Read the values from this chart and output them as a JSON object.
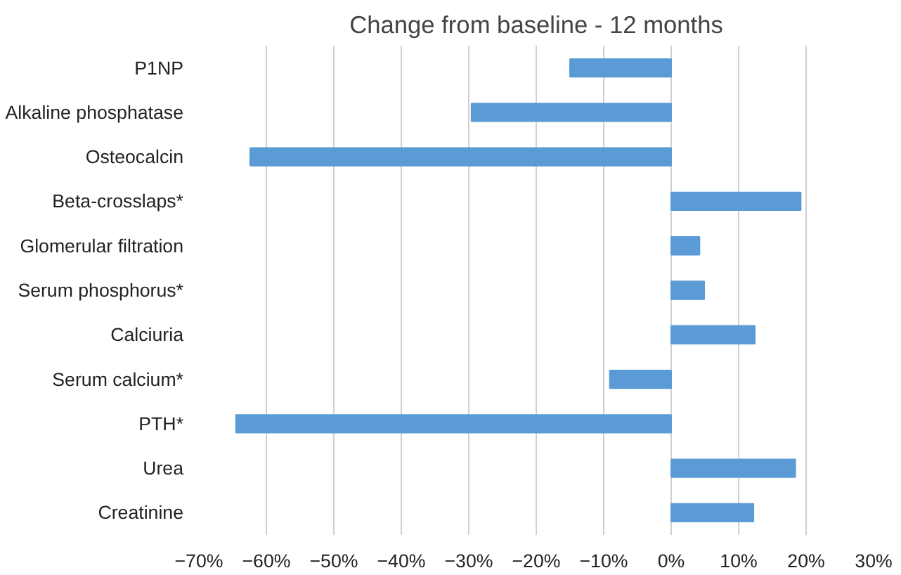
{
  "chart_data": {
    "type": "bar",
    "orientation": "horizontal",
    "title": "Change from baseline - 12 months",
    "categories": [
      "P1NP",
      "Alkaline phosphatase",
      "Osteocalcin",
      "Beta-crosslaps*",
      "Glomerular filtration",
      "Serum phosphorus*",
      "Calciuria",
      "Serum calcium*",
      "PTH*",
      "Urea",
      "Creatinine"
    ],
    "values": [
      -15.0,
      -29.6,
      -62.4,
      19.2,
      4.2,
      4.9,
      12.4,
      -9.1,
      -64.5,
      18.4,
      12.2
    ],
    "color": "#5b9bd5",
    "xlim": [
      -70,
      30
    ],
    "xticks": [
      {
        "value": -70,
        "label": "−70%"
      },
      {
        "value": -60,
        "label": "−60%"
      },
      {
        "value": -50,
        "label": "−50%"
      },
      {
        "value": -40,
        "label": "−40%"
      },
      {
        "value": -30,
        "label": "−30%"
      },
      {
        "value": -20,
        "label": "−20%"
      },
      {
        "value": -10,
        "label": "−10%"
      },
      {
        "value": 0,
        "label": "0%"
      },
      {
        "value": 10,
        "label": "10%"
      },
      {
        "value": 20,
        "label": "20%"
      },
      {
        "value": 30,
        "label": "30%"
      }
    ],
    "grid": "x"
  }
}
